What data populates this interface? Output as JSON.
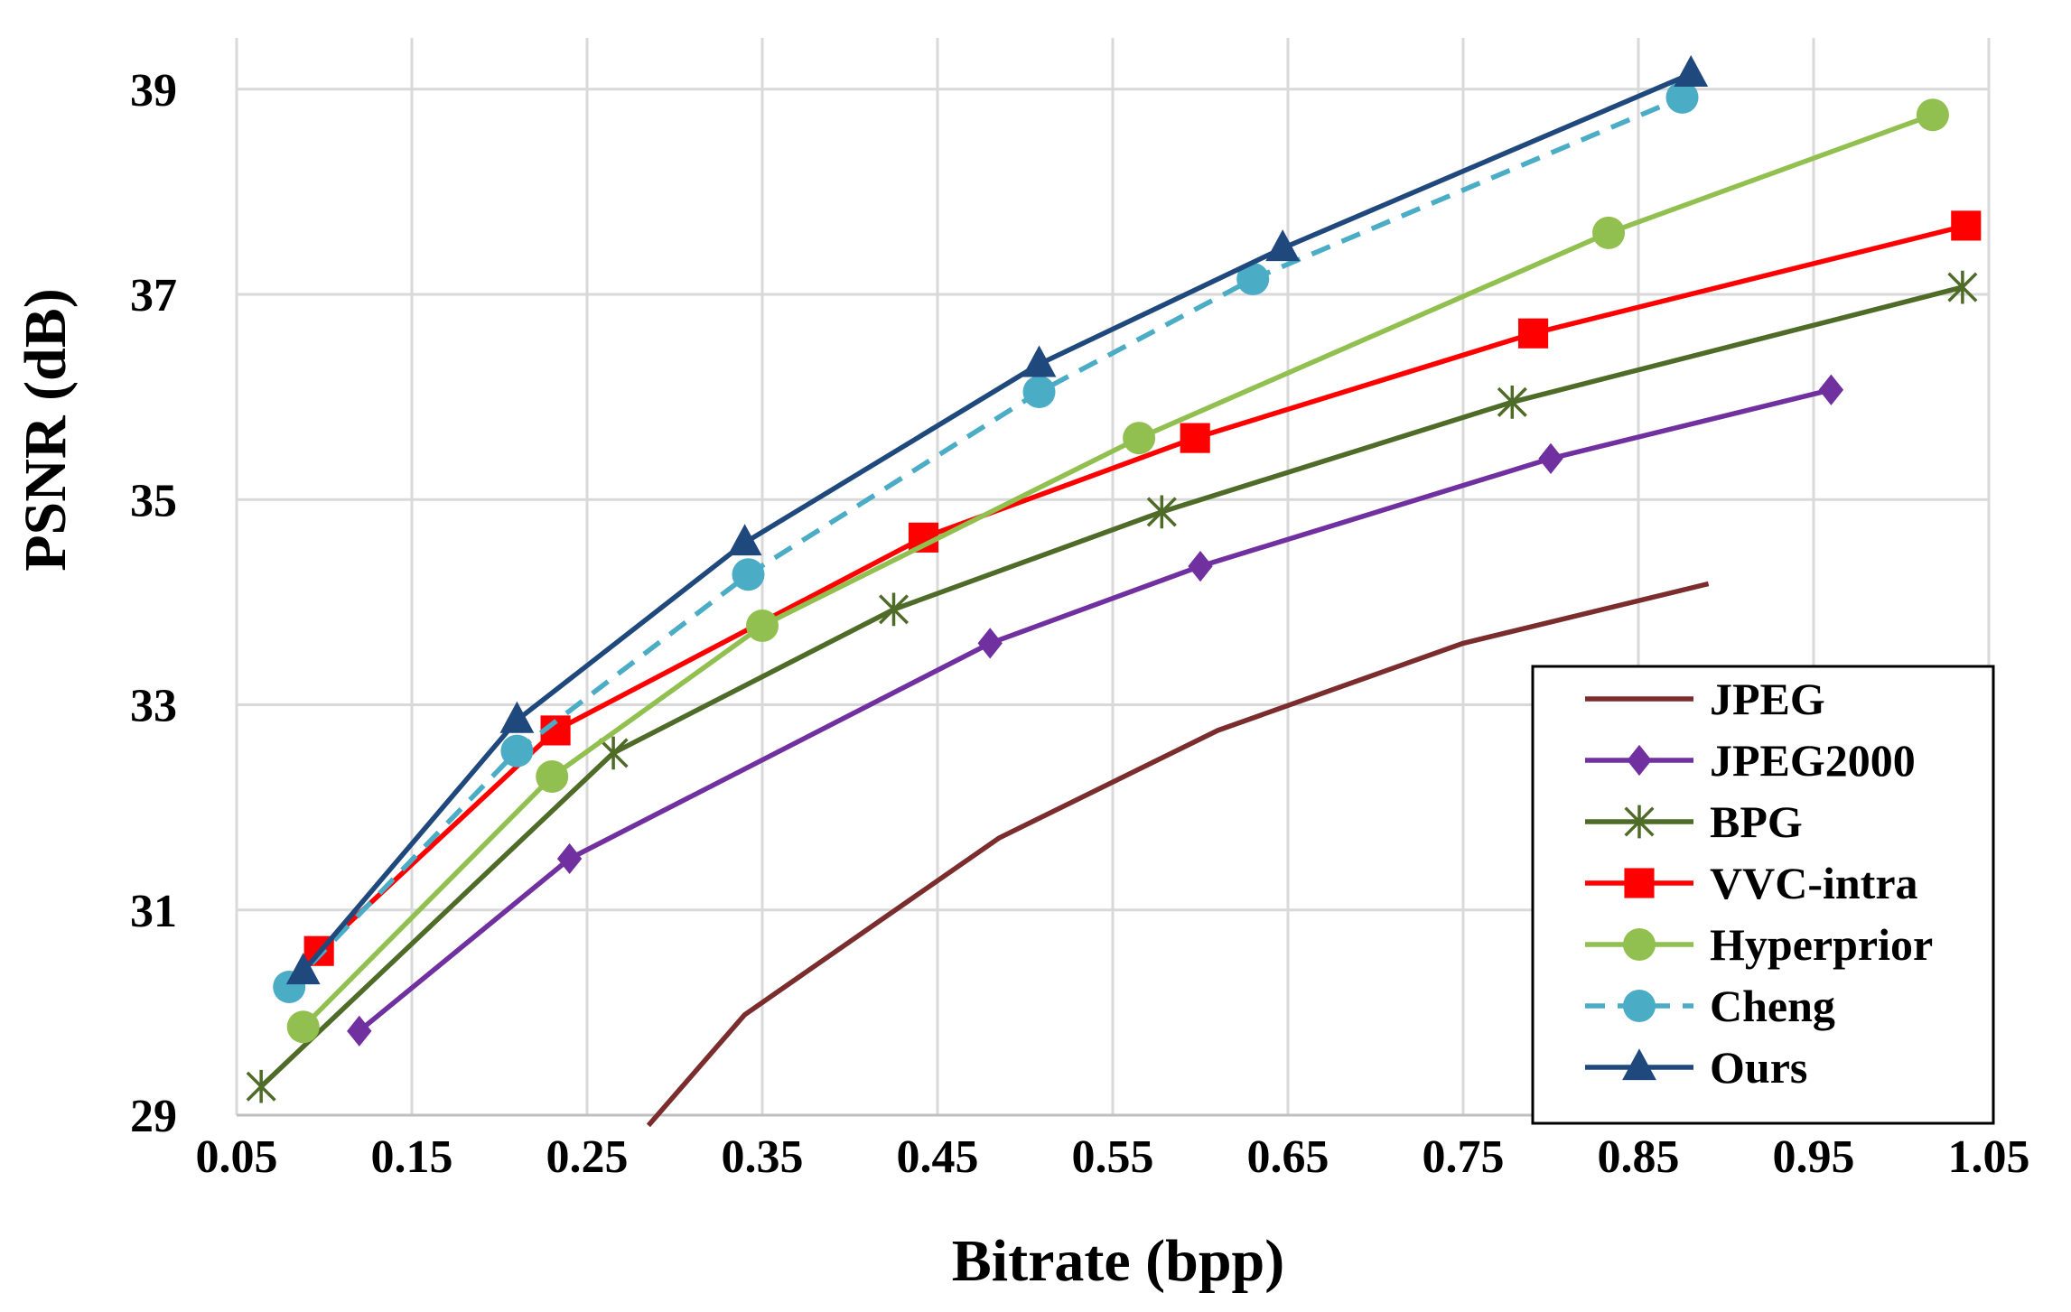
{
  "chart_data": {
    "type": "line",
    "title": "",
    "xlabel": "Bitrate (bpp)",
    "ylabel": "PSNR (dB)",
    "xlim": [
      0.05,
      1.05
    ],
    "ylim": [
      29,
      39.5
    ],
    "xticks": [
      "0.05",
      "0.15",
      "0.25",
      "0.35",
      "0.45",
      "0.55",
      "0.65",
      "0.75",
      "0.85",
      "0.95",
      "1.05"
    ],
    "xtick_values": [
      0.05,
      0.15,
      0.25,
      0.35,
      0.45,
      0.55,
      0.65,
      0.75,
      0.85,
      0.95,
      1.05
    ],
    "yticks": [
      "29",
      "31",
      "33",
      "35",
      "37",
      "39"
    ],
    "ytick_values": [
      29,
      31,
      33,
      35,
      37,
      39
    ],
    "grid": true,
    "legend_position": "bottom-right",
    "series": [
      {
        "name": "JPEG",
        "color": "#7B2C2C",
        "marker": "none",
        "dashed": false,
        "x": [
          0.285,
          0.34,
          0.485,
          0.61,
          0.75,
          0.89
        ],
        "y": [
          28.9,
          29.98,
          31.7,
          32.75,
          33.6,
          34.18
        ]
      },
      {
        "name": "JPEG2000",
        "color": "#7030A0",
        "marker": "diamond",
        "dashed": false,
        "x": [
          0.12,
          0.24,
          0.48,
          0.6,
          0.8,
          0.96
        ],
        "y": [
          29.82,
          31.5,
          33.6,
          34.35,
          35.4,
          36.07
        ]
      },
      {
        "name": "BPG",
        "color": "#4F6B28",
        "marker": "star",
        "dashed": false,
        "x": [
          0.064,
          0.265,
          0.425,
          0.578,
          0.778,
          1.035
        ],
        "y": [
          29.28,
          32.53,
          33.93,
          34.88,
          35.95,
          37.07
        ]
      },
      {
        "name": "VVC-intra",
        "color": "#FF0000",
        "marker": "square",
        "dashed": false,
        "x": [
          0.097,
          0.232,
          0.442,
          0.597,
          0.79,
          1.037
        ],
        "y": [
          30.6,
          32.75,
          34.63,
          35.6,
          36.62,
          37.67
        ]
      },
      {
        "name": "Hyperprior",
        "color": "#92C050",
        "marker": "circle",
        "dashed": false,
        "x": [
          0.088,
          0.23,
          0.35,
          0.565,
          0.833,
          1.018
        ],
        "y": [
          29.86,
          32.3,
          33.77,
          35.6,
          37.6,
          38.75
        ]
      },
      {
        "name": "Cheng",
        "color": "#4BACC6",
        "marker": "circle",
        "dashed": true,
        "x": [
          0.08,
          0.21,
          0.342,
          0.508,
          0.63,
          0.875
        ],
        "y": [
          30.25,
          32.55,
          34.27,
          36.05,
          37.15,
          38.92
        ]
      },
      {
        "name": "Ours",
        "color": "#1F497D",
        "marker": "triangle",
        "dashed": false,
        "x": [
          0.088,
          0.21,
          0.34,
          0.508,
          0.647,
          0.88
        ],
        "y": [
          30.4,
          32.85,
          34.58,
          36.32,
          37.45,
          39.15
        ]
      }
    ]
  }
}
